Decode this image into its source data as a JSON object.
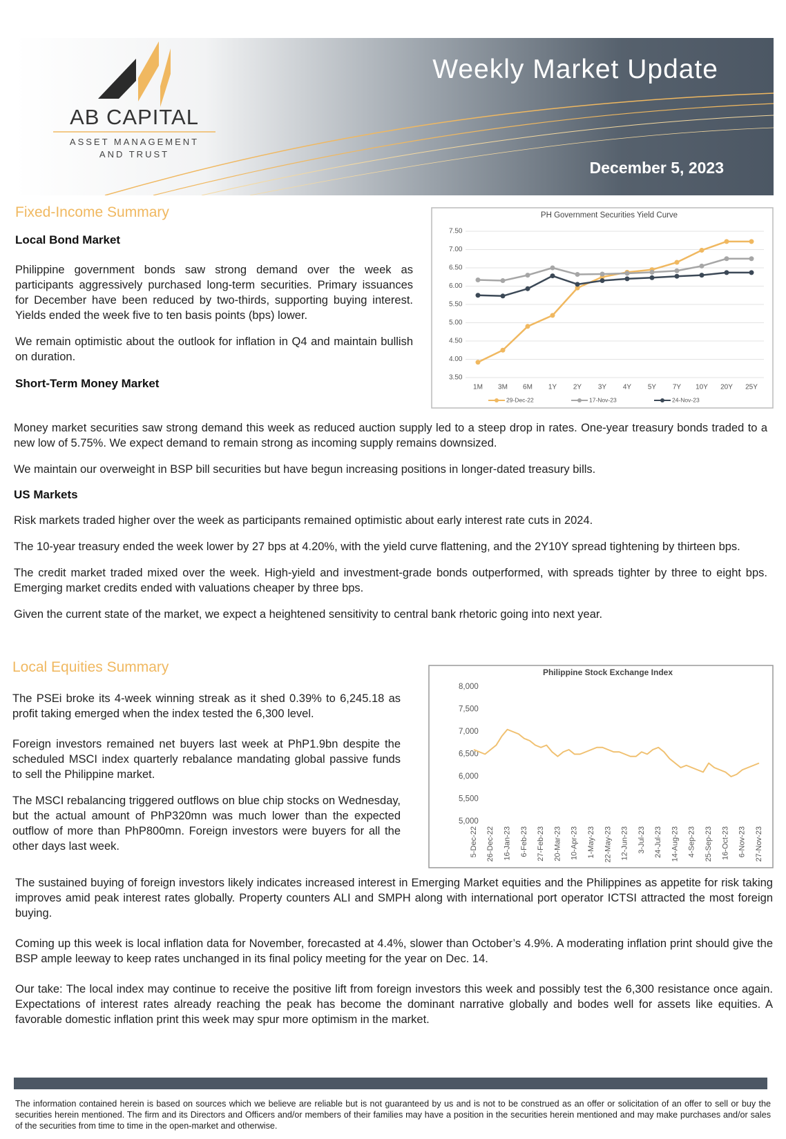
{
  "header": {
    "logo_name": "AB CAPITAL",
    "logo_sub1": "ASSET MANAGEMENT",
    "logo_sub2": "AND TRUST",
    "title": "Weekly Market Update",
    "date": "December 5, 2023"
  },
  "fixed_income": {
    "heading": "Fixed-Income Summary",
    "local_bond": {
      "heading": "Local Bond Market",
      "paragraphs": [
        "Philippine government bonds saw strong demand over the week as participants aggressively purchased long-term securities. Primary issuances for December have been reduced by two-thirds, supporting buying interest. Yields ended the week five to ten basis points (bps) lower.",
        "We remain optimistic about the outlook for inflation in Q4 and maintain bullish on duration."
      ]
    },
    "money_market": {
      "heading": "Short-Term Money Market",
      "paragraphs": [
        "Money market securities saw strong demand this week as reduced auction supply led to a steep drop in rates. One-year treasury bonds traded to a new low of 5.75%. We expect demand to remain strong as incoming supply remains downsized.",
        "We maintain our overweight in BSP bill securities but have begun increasing positions in longer-dated treasury bills."
      ]
    },
    "us_markets": {
      "heading": "US Markets",
      "paragraphs": [
        "Risk markets traded higher over the week as participants remained optimistic about early interest rate cuts in 2024.",
        "The 10-year treasury ended the week lower by 27 bps at 4.20%, with the yield curve flattening, and the 2Y10Y spread tightening by thirteen bps.",
        "The credit market traded mixed over the week. High-yield and investment-grade bonds outperformed, with spreads tighter by three to eight bps. Emerging market credits ended with valuations cheaper by three bps.",
        "Given the current state of the market, we expect a heightened sensitivity to central bank rhetoric going into next year."
      ]
    }
  },
  "equities": {
    "heading": "Local Equities Summary",
    "paragraphs": [
      "The PSEi broke its 4-week winning streak as it shed 0.39% to 6,245.18 as profit taking emerged when the index tested the 6,300 level.",
      "Foreign investors remained net buyers last week at PhP1.9bn despite the scheduled MSCI index quarterly rebalance mandating global passive funds to sell the Philippine market.",
      "The MSCI rebalancing triggered outflows on blue chip stocks on Wednesday, but the actual amount of PhP320mn was much lower than the expected outflow of more than PhP800mn. Foreign investors were buyers for all the other days last week.",
      "The sustained buying of foreign investors likely indicates increased interest in Emerging Market equities and the Philippines as appetite for risk taking improves amid peak interest rates globally. Property counters ALI and SMPH along with international port operator ICTSI attracted the most foreign buying.",
      "Coming up this week is local inflation data for November, forecasted at 4.4%, slower than October’s 4.9%. A moderating inflation print should give the BSP ample leeway to keep rates unchanged in its final policy meeting for the year on Dec. 14.",
      "Our take: The local index may continue to receive the positive lift from foreign investors this week and possibly test the 6,300 resistance once again.  Expectations of interest rates already reaching the peak has become the dominant narrative globally and bodes well for assets like equities. A favorable domestic inflation print this week may  spur more optimism in the market."
    ]
  },
  "disclaimer": "The information contained herein is based on sources which we believe are reliable but is not guaranteed by us and is not to be construed as an offer or solicitation of an offer to sell or buy the securities herein mentioned. The firm and its Directors and Officers and/or members of their families may have a position in the securities herein mentioned and may make purchases and/or sales of the securities from time to time in the open-market and otherwise.",
  "chart_data": [
    {
      "type": "line",
      "title": "PH Government Securities Yield Curve",
      "categories": [
        "1M",
        "3M",
        "6M",
        "1Y",
        "2Y",
        "3Y",
        "4Y",
        "5Y",
        "7Y",
        "10Y",
        "20Y",
        "25Y"
      ],
      "series": [
        {
          "name": "29-Dec-22",
          "color": "#f0b860",
          "values": [
            3.92,
            4.25,
            4.9,
            5.2,
            5.95,
            6.25,
            6.38,
            6.45,
            6.65,
            6.98,
            7.22,
            7.22
          ]
        },
        {
          "name": "17-Nov-23",
          "color": "#a6a6a6",
          "values": [
            6.17,
            6.15,
            6.3,
            6.5,
            6.32,
            6.33,
            6.35,
            6.38,
            6.42,
            6.55,
            6.75,
            6.75
          ]
        },
        {
          "name": "24-Nov-23",
          "color": "#3b4856",
          "values": [
            5.75,
            5.73,
            5.93,
            6.28,
            6.05,
            6.15,
            6.2,
            6.23,
            6.27,
            6.3,
            6.37,
            6.37
          ]
        }
      ],
      "ylim": [
        3.5,
        7.5
      ],
      "yticks": [
        {
          "value": 3.5,
          "label": "3.50"
        },
        {
          "value": 4,
          "label": "4.00"
        },
        {
          "value": 4.5,
          "label": "4.50"
        },
        {
          "value": 5,
          "label": "5.00"
        },
        {
          "value": 5.5,
          "label": "5.50"
        },
        {
          "value": 6,
          "label": "6.00"
        },
        {
          "value": 6.5,
          "label": "6.50"
        },
        {
          "value": 7,
          "label": "7.00"
        },
        {
          "value": 7.5,
          "label": "7.50"
        }
      ],
      "grid": true,
      "legend": "bottom"
    },
    {
      "type": "line",
      "title": "Philippine Stock Exchange Index",
      "categories": [
        "5-Dec-22",
        null,
        null,
        "26-Dec-22",
        null,
        null,
        "16-Jan-23",
        null,
        null,
        "6-Feb-23",
        null,
        null,
        "27-Feb-23",
        null,
        null,
        "20-Mar-23",
        null,
        null,
        "10-Apr-23",
        null,
        null,
        "1-May-23",
        null,
        null,
        "22-May-23",
        null,
        null,
        "12-Jun-23",
        null,
        null,
        "3-Jul-23",
        null,
        null,
        "24-Jul-23",
        null,
        null,
        "14-Aug-23",
        null,
        null,
        "4-Sep-23",
        null,
        null,
        "25-Sep-23",
        null,
        null,
        "16-Oct-23",
        null,
        null,
        "6-Nov-23",
        null,
        null,
        "27-Nov-23"
      ],
      "values": [
        6600,
        6550,
        6500,
        6600,
        6700,
        6900,
        7050,
        7000,
        6950,
        6850,
        6800,
        6700,
        6650,
        6700,
        6550,
        6450,
        6550,
        6600,
        6500,
        6500,
        6550,
        6600,
        6650,
        6650,
        6600,
        6550,
        6550,
        6500,
        6450,
        6450,
        6550,
        6500,
        6600,
        6650,
        6550,
        6400,
        6300,
        6200,
        6250,
        6200,
        6150,
        6100,
        6300,
        6200,
        6150,
        6100,
        6000,
        6050,
        6150,
        6200,
        6250,
        6300
      ],
      "color": "#f0c070",
      "ylim": [
        5000,
        8000
      ],
      "yticks": [
        {
          "value": 5000,
          "label": "5,000"
        },
        {
          "value": 5500,
          "label": "5,500"
        },
        {
          "value": 6000,
          "label": "6,000"
        },
        {
          "value": 6500,
          "label": "6,500"
        },
        {
          "value": 7000,
          "label": "7,000"
        },
        {
          "value": 7500,
          "label": "7,500"
        },
        {
          "value": 8000,
          "label": "8,000"
        }
      ],
      "grid": false
    }
  ]
}
